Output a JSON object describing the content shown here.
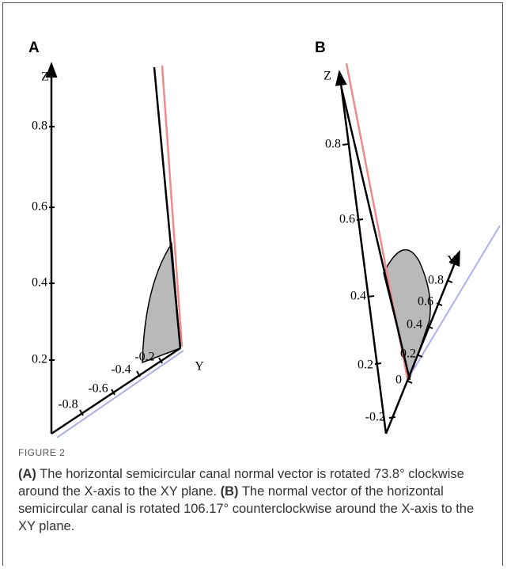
{
  "figure": {
    "panels": [
      {
        "label": "A",
        "z_axis": {
          "label": "Z",
          "ticks": [
            "0.8",
            "0.6",
            "0.4",
            "0.2"
          ]
        },
        "y_axis": {
          "label": "Y",
          "ticks": [
            "-0.8",
            "-0.6",
            "-0.4",
            "-0.2"
          ]
        }
      },
      {
        "label": "B",
        "z_axis": {
          "label": "Z",
          "ticks": [
            "0.8",
            "0.6",
            "0.4",
            "0.2",
            "-0.2"
          ]
        },
        "y_axis": {
          "label": "Y",
          "ticks": [
            "0",
            "0.2",
            "0.4",
            "0.6",
            "0.8"
          ]
        }
      }
    ],
    "caption": {
      "label": "FIGURE 2",
      "parts": [
        {
          "ref": "(A)",
          "text": "The horizontal semicircular canal normal vector is rotated 73.8° clockwise around the X-axis to the XY plane."
        },
        {
          "ref": "(B)",
          "text": "The normal vector of the horizontal semicircular canal is rotated 106.17° counterclockwise around the X-axis to the XY plane."
        }
      ]
    }
  }
}
